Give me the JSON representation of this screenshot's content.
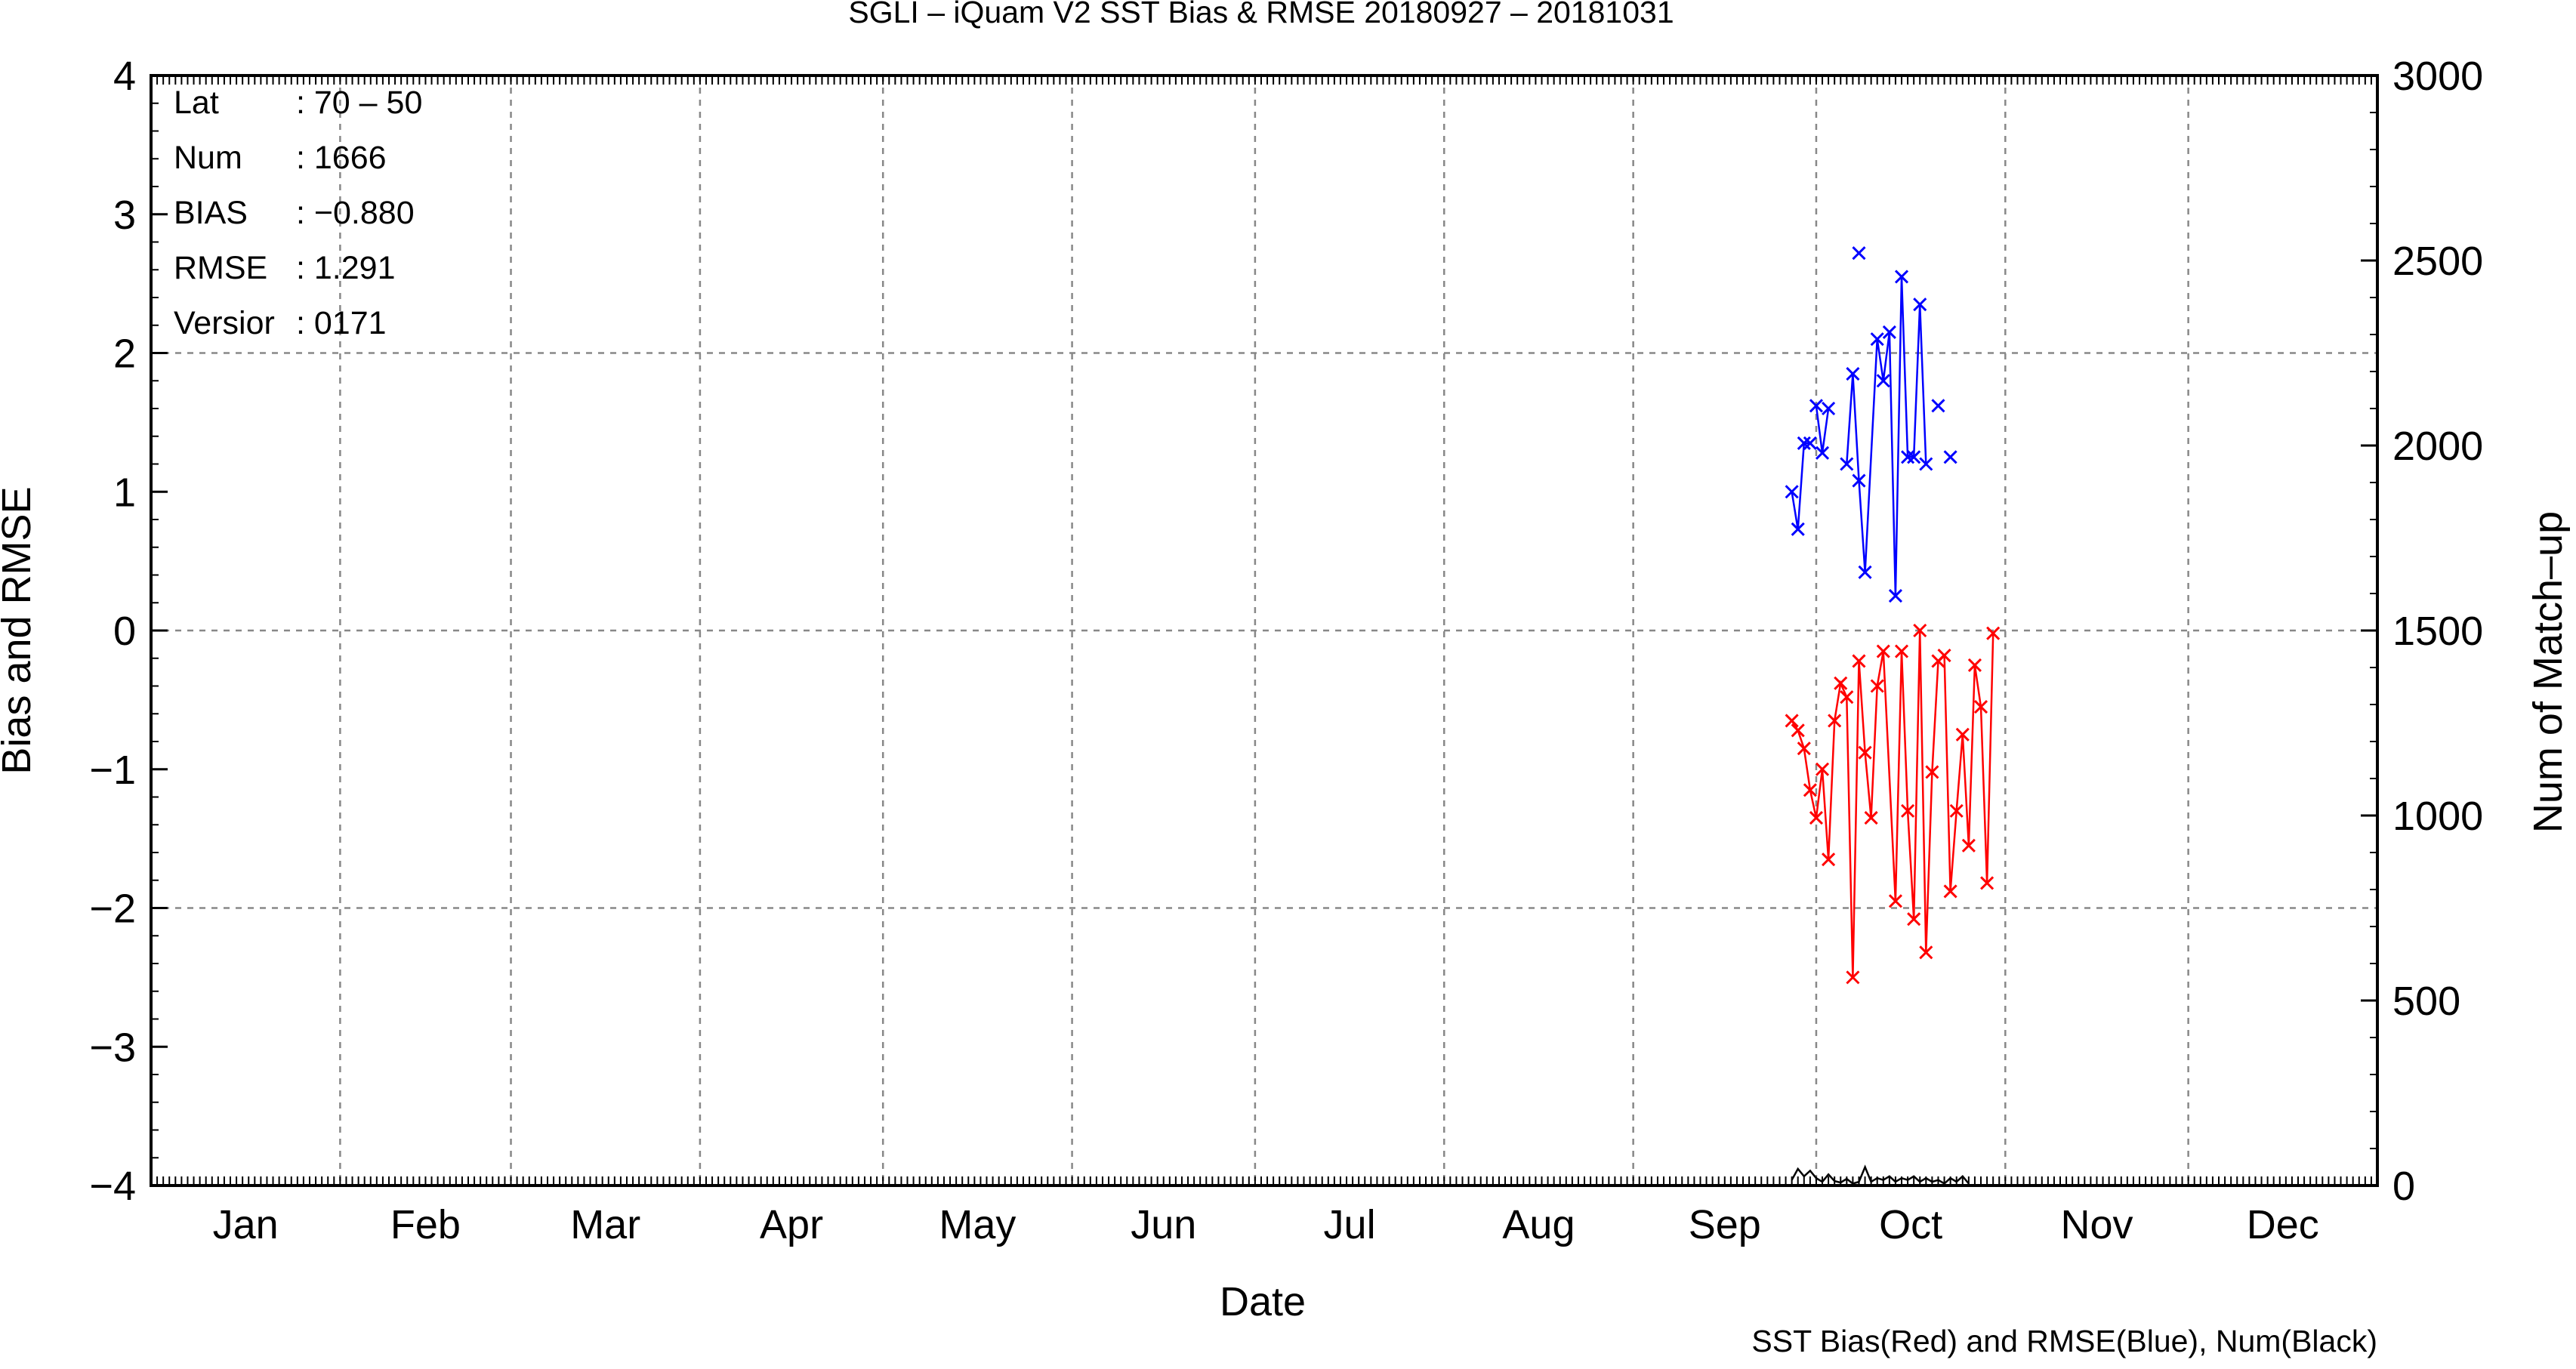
{
  "chart_data": {
    "type": "line",
    "title": "SGLI – iQuam V2 SST Bias & RMSE 20180927 – 20181031",
    "xlabel": "Date",
    "ylabel_left": "Bias and RMSE",
    "ylabel_right": "Num of Match–up",
    "footer": "SST Bias(Red) and RMSE(Blue), Num(Black)",
    "x_domain": [
      0,
      365
    ],
    "ylim_left": [
      -4,
      4
    ],
    "ylim_right": [
      0,
      3000
    ],
    "months": [
      {
        "label": "Jan",
        "start": 0
      },
      {
        "label": "Feb",
        "start": 31
      },
      {
        "label": "Mar",
        "start": 59
      },
      {
        "label": "Apr",
        "start": 90
      },
      {
        "label": "May",
        "start": 120
      },
      {
        "label": "Jun",
        "start": 151
      },
      {
        "label": "Jul",
        "start": 181
      },
      {
        "label": "Aug",
        "start": 212
      },
      {
        "label": "Sep",
        "start": 243
      },
      {
        "label": "Oct",
        "start": 273
      },
      {
        "label": "Nov",
        "start": 304
      },
      {
        "label": "Dec",
        "start": 334
      }
    ],
    "left_ticks": [
      "4",
      "3",
      "2",
      "1",
      "0",
      "−1",
      "−2",
      "−3",
      "−4"
    ],
    "right_ticks": [
      "3000",
      "2500",
      "2000",
      "1500",
      "1000",
      "500",
      "0"
    ],
    "grid": true,
    "stats": [
      {
        "label": "Lat",
        "value": ": 70 – 50"
      },
      {
        "label": "Num",
        "value": ": 1666"
      },
      {
        "label": "BIAS",
        "value": ": −0.880"
      },
      {
        "label": "RMSE",
        "value": ": 1.291"
      },
      {
        "label": "Versior",
        "value": ": 0171"
      }
    ],
    "colors": {
      "bias": "#ff0000",
      "rmse": "#0000ff",
      "num": "#000000",
      "grid": "#888888"
    },
    "series": [
      {
        "name": "SST Bias",
        "color": "#ff0000",
        "segments": [
          [
            [
              269,
              -0.65
            ],
            [
              270,
              -0.72
            ],
            [
              271,
              -0.85
            ],
            [
              272,
              -1.15
            ],
            [
              273,
              -1.35
            ],
            [
              274,
              -1.0
            ],
            [
              275,
              -1.65
            ],
            [
              276,
              -0.65
            ],
            [
              277,
              -0.38
            ],
            [
              278,
              -0.48
            ],
            [
              279,
              -2.5
            ],
            [
              280,
              -0.22
            ],
            [
              281,
              -0.88
            ],
            [
              282,
              -1.35
            ],
            [
              283,
              -0.4
            ],
            [
              284,
              -0.15
            ],
            [
              286,
              -1.95
            ],
            [
              287,
              -0.15
            ],
            [
              288,
              -1.3
            ],
            [
              289,
              -2.08
            ],
            [
              290,
              0.0
            ],
            [
              291,
              -2.32
            ],
            [
              292,
              -1.02
            ],
            [
              293,
              -0.22
            ],
            [
              294,
              -0.18
            ],
            [
              295,
              -1.88
            ],
            [
              296,
              -1.3
            ],
            [
              297,
              -0.75
            ],
            [
              298,
              -1.55
            ],
            [
              299,
              -0.25
            ],
            [
              300,
              -0.55
            ],
            [
              301,
              -1.82
            ],
            [
              302,
              -0.02
            ]
          ]
        ]
      },
      {
        "name": "SST RMSE",
        "color": "#0000ff",
        "segments": [
          [
            [
              269,
              1.0
            ],
            [
              270,
              0.73
            ],
            [
              271,
              1.35
            ],
            [
              272,
              1.35
            ]
          ],
          [
            [
              273,
              1.62
            ],
            [
              274,
              1.28
            ],
            [
              275,
              1.6
            ]
          ],
          [
            [
              278,
              1.2
            ],
            [
              279,
              1.85
            ],
            [
              280,
              1.08
            ],
            [
              281,
              0.42
            ],
            [
              283,
              2.1
            ],
            [
              284,
              1.8
            ],
            [
              285,
              2.15
            ],
            [
              286,
              0.25
            ],
            [
              287,
              2.55
            ],
            [
              288,
              1.25
            ],
            [
              289,
              1.25
            ],
            [
              290,
              2.35
            ],
            [
              291,
              1.2
            ]
          ],
          [
            [
              280,
              2.72
            ]
          ],
          [
            [
              293,
              1.62
            ]
          ],
          [
            [
              295,
              1.25
            ]
          ]
        ]
      },
      {
        "name": "Num",
        "axis": "right",
        "color": "#000000",
        "segments": [
          [
            [
              269,
              15
            ],
            [
              270,
              45
            ],
            [
              271,
              25
            ],
            [
              272,
              40
            ],
            [
              273,
              20
            ],
            [
              274,
              10
            ],
            [
              275,
              30
            ],
            [
              276,
              12
            ],
            [
              277,
              8
            ],
            [
              278,
              18
            ],
            [
              279,
              5
            ],
            [
              280,
              10
            ],
            [
              281,
              50
            ],
            [
              282,
              10
            ],
            [
              283,
              20
            ],
            [
              284,
              15
            ],
            [
              285,
              25
            ],
            [
              286,
              10
            ],
            [
              287,
              20
            ],
            [
              288,
              15
            ],
            [
              289,
              25
            ],
            [
              290,
              10
            ],
            [
              291,
              20
            ],
            [
              292,
              10
            ],
            [
              293,
              15
            ],
            [
              294,
              5
            ],
            [
              295,
              20
            ],
            [
              296,
              10
            ],
            [
              297,
              25
            ],
            [
              298,
              5
            ]
          ]
        ]
      }
    ]
  }
}
